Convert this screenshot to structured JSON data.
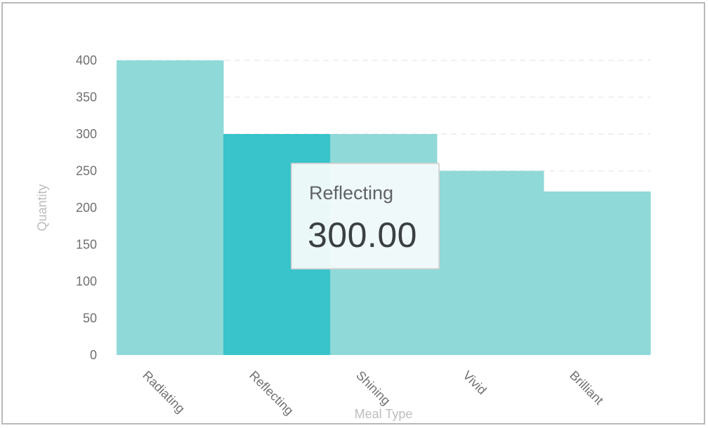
{
  "chart_data": {
    "type": "bar",
    "categories": [
      "Radiating",
      "Reflecting",
      "Shining",
      "Vivid",
      "Brilliant"
    ],
    "values": [
      400,
      300,
      300,
      250,
      222
    ],
    "xlabel": "Meal Type",
    "ylabel": "Quantity",
    "ylim": [
      0,
      400
    ],
    "yticks": [
      0,
      50,
      100,
      150,
      200,
      250,
      300,
      350,
      400
    ],
    "grid": true,
    "bar_color": "#8fd9d8",
    "highlight_color": "#39c3cb",
    "highlighted_category": "Reflecting"
  },
  "tooltip": {
    "label": "Reflecting",
    "value": "300.00"
  }
}
